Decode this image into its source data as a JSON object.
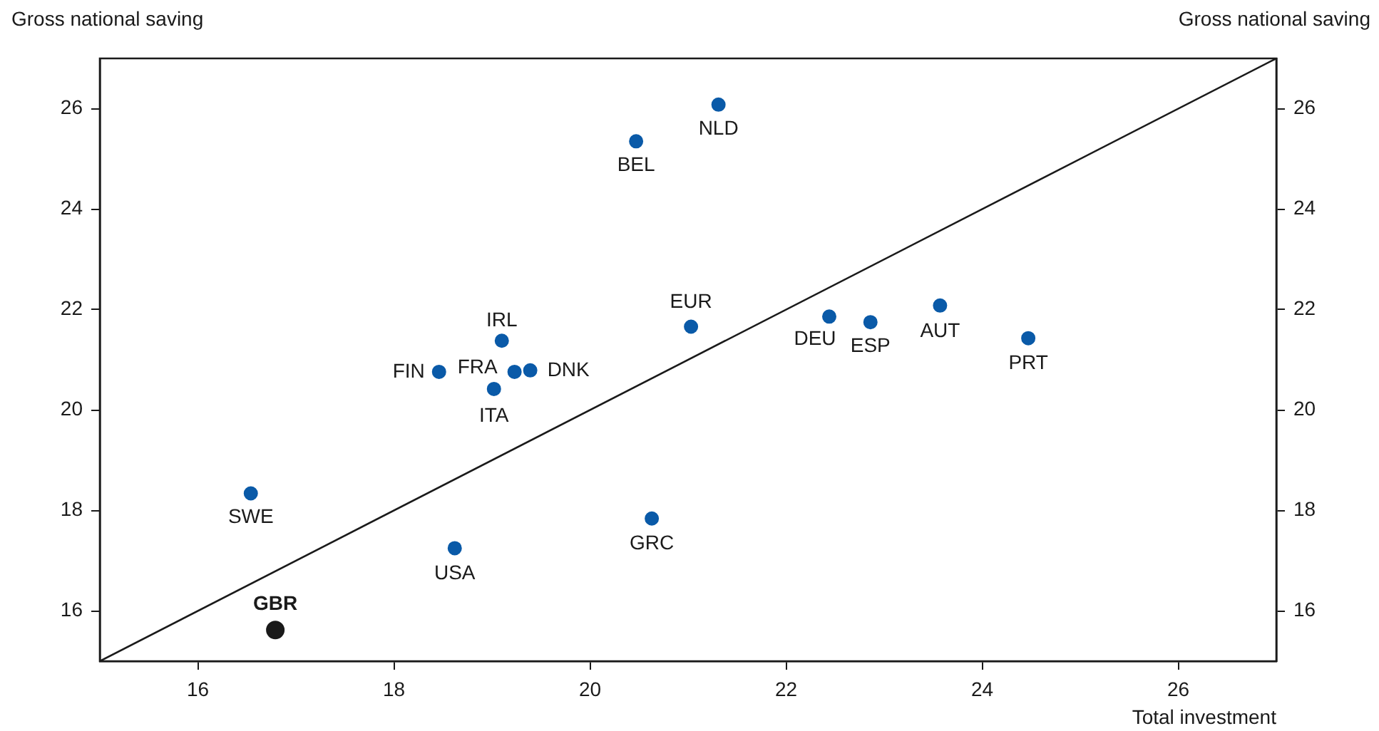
{
  "chart_data": {
    "type": "scatter",
    "xlabel": "Total investment",
    "ylabel": "Gross national saving",
    "y2label": "Gross national saving",
    "xlim": [
      15,
      27
    ],
    "xticks": [
      16,
      18,
      20,
      22,
      24,
      26
    ],
    "ylim": [
      15,
      27
    ],
    "yticks": [
      16,
      18,
      20,
      22,
      24,
      26
    ],
    "y2lim": [
      15,
      27
    ],
    "y2ticks": [
      16,
      18,
      20,
      22,
      24,
      26
    ],
    "grid": false,
    "legend": false,
    "marker": "circle",
    "series": [
      {
        "x": [
          21.31,
          20.47,
          21.03,
          22.44,
          22.86,
          23.57,
          24.47,
          19.1,
          19.23,
          19.39,
          18.46,
          19.02,
          16.54,
          18.62,
          20.63
        ],
        "values": [
          26.08,
          25.35,
          21.66,
          21.86,
          21.75,
          22.08,
          21.43,
          21.38,
          20.76,
          20.79,
          20.76,
          20.42,
          18.34,
          17.25,
          17.84
        ],
        "color": "#0a5aa8"
      },
      {
        "x": [
          16.79
        ],
        "values": [
          15.62
        ],
        "color": "#1a1a1a"
      },
      {
        "type": "line",
        "x": [
          15,
          27
        ],
        "values": [
          15,
          27
        ],
        "color": "#1a1a1a",
        "marker": "none",
        "line_style": "solid"
      }
    ],
    "annotations": [
      {
        "text": "NLD",
        "x": 21.31,
        "y": 26.08
      },
      {
        "text": "BEL",
        "x": 20.47,
        "y": 25.35
      },
      {
        "text": "EUR",
        "x": 21.03,
        "y": 21.66
      },
      {
        "text": "DEU",
        "x": 22.44,
        "y": 21.86
      },
      {
        "text": "ESP",
        "x": 22.86,
        "y": 21.75
      },
      {
        "text": "AUT",
        "x": 23.57,
        "y": 22.08
      },
      {
        "text": "PRT",
        "x": 24.47,
        "y": 21.43
      },
      {
        "text": "IRL",
        "x": 19.1,
        "y": 21.38
      },
      {
        "text": "FRA",
        "x": 19.23,
        "y": 20.76
      },
      {
        "text": "DNK",
        "x": 19.39,
        "y": 20.79
      },
      {
        "text": "FIN",
        "x": 18.46,
        "y": 20.76
      },
      {
        "text": "ITA",
        "x": 19.02,
        "y": 20.42
      },
      {
        "text": "SWE",
        "x": 16.54,
        "y": 18.34
      },
      {
        "text": "USA",
        "x": 18.62,
        "y": 17.25
      },
      {
        "text": "GRC",
        "x": 20.63,
        "y": 17.84
      },
      {
        "text": "GBR",
        "x": 16.79,
        "y": 15.62
      }
    ]
  }
}
